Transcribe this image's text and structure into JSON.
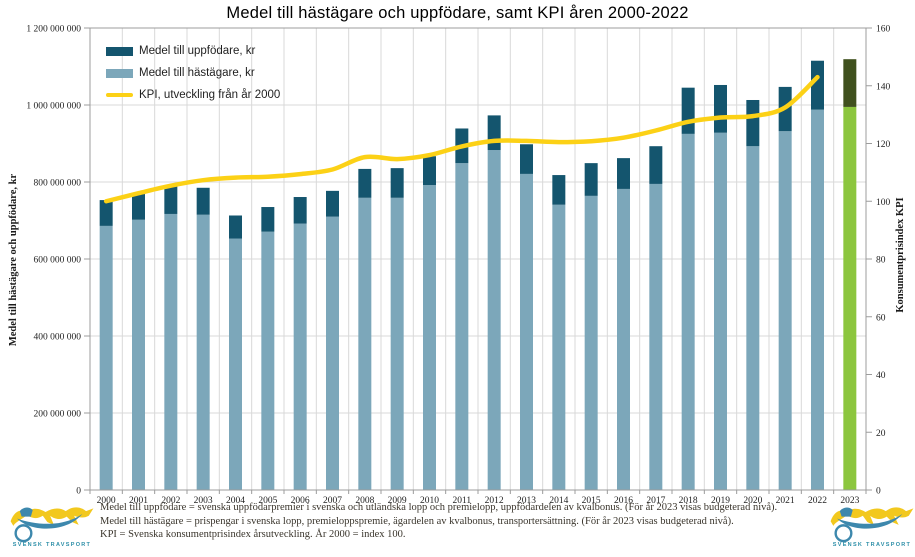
{
  "title": "Medel till hästägare och uppfödare, samt KPI åren 2000-2022",
  "legend": {
    "items": [
      {
        "label": "Medel till uppfödare, kr",
        "color": "#14556e",
        "type": "swatch"
      },
      {
        "label": "Medel till hästägare, kr",
        "color": "#7ca7ba",
        "type": "swatch"
      },
      {
        "label": "KPI, utveckling från år 2000",
        "color": "#fcd116",
        "type": "line"
      }
    ]
  },
  "chart_data": {
    "type": "bar",
    "subtype": "stacked-bars-with-line",
    "categories": [
      "2000",
      "2001",
      "2002",
      "2003",
      "2004",
      "2005",
      "2006",
      "2007",
      "2008",
      "2009",
      "2010",
      "2011",
      "2012",
      "2013",
      "2014",
      "2015",
      "2016",
      "2017",
      "2018",
      "2019",
      "2020",
      "2021",
      "2022",
      "2023"
    ],
    "series": [
      {
        "name": "Medel till hästägare, kr",
        "axis": "left",
        "render": "bar-bottom",
        "color": "#7ca7ba",
        "values": [
          686000000,
          702000000,
          717000000,
          715000000,
          653000000,
          671000000,
          692000000,
          710000000,
          759000000,
          759000000,
          792000000,
          849000000,
          883000000,
          821000000,
          741000000,
          764000000,
          782000000,
          795000000,
          925000000,
          928000000,
          893000000,
          932000000,
          988000000,
          995000000
        ]
      },
      {
        "name": "Medel till uppfödare, kr",
        "axis": "left",
        "render": "bar-top",
        "color": "#14556e",
        "values": [
          67000000,
          67000000,
          75000000,
          70000000,
          60000000,
          64000000,
          69000000,
          67000000,
          75000000,
          77000000,
          75000000,
          90000000,
          90000000,
          77000000,
          77000000,
          85000000,
          80000000,
          98000000,
          120000000,
          124000000,
          120000000,
          115000000,
          127000000,
          124000000
        ]
      },
      {
        "name": "KPI, utveckling från år 2000",
        "axis": "right",
        "render": "line",
        "color": "#fcd116",
        "values": [
          100,
          102.8,
          105.4,
          107.3,
          108.2,
          108.5,
          109.4,
          111.0,
          115.3,
          114.6,
          116.0,
          119.0,
          120.9,
          120.9,
          120.5,
          120.8,
          122.0,
          124.5,
          127.5,
          129.0,
          129.5,
          132.5,
          143.0,
          null
        ]
      }
    ],
    "special_category": {
      "label": "2023",
      "bottom_color": "#8cc63e",
      "top_color": "#40511e",
      "note": "budgeterad nivå"
    },
    "left_axis": {
      "title": "Medel  till hästägare  och uppfödare,  kr",
      "min": 0,
      "max": 1200000000,
      "step": 200000000,
      "tick_labels": [
        "1 200 000 000",
        "1 000 000 000",
        "800 000 000",
        "600 000 000",
        "400 000 000",
        "200 000 000",
        "0"
      ]
    },
    "right_axis": {
      "title": "Konsumentprisindex  KPI",
      "min": 0,
      "max": 160,
      "step": 20,
      "tick_labels": [
        "160",
        "140",
        "120",
        "100",
        "80",
        "60",
        "40",
        "20",
        "0"
      ]
    },
    "grid": {
      "horizontal": true,
      "vertical": true,
      "color": "#d9d9d9",
      "axis_color": "#9c9c9c"
    },
    "legend_position": "top-left-inside"
  },
  "footnotes": [
    "Medel till  uppfödare = svenska uppfödarpremier i  svenska och utländska lopp och premielopp,  uppfödardelen av kvalbonus. (För år 2023  visas budgeterad nivå).",
    "Medel till  hästägare = prispengar i  svenska lopp, premieloppspremie,  ägardelen av kvalbonus, transportersättning. (För år 2023  visas budgeterad nivå).",
    "KPI = Svenska konsumentprisindex  årsutveckling. År 2000  = index 100."
  ],
  "logo": {
    "text": "SVENSK TRAVSPORT",
    "horse_color": "#f2c81e",
    "driver_color": "#3d88ad",
    "text_color": "#2e8fa8"
  }
}
